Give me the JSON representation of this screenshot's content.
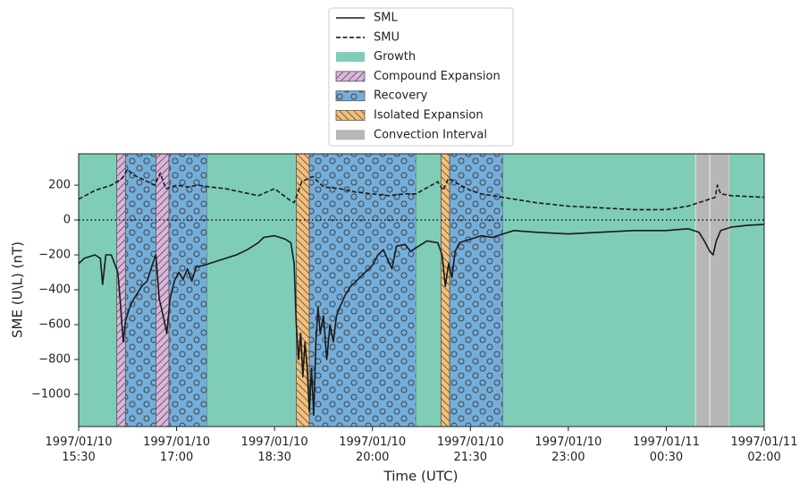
{
  "chart_data": {
    "type": "line",
    "xlabel": "Time (UTC)",
    "ylabel": "SME (U\\L) (nT)",
    "xlim": [
      "1997/01/10 15:30",
      "1997/01/11 02:00"
    ],
    "xticks": [
      "1997/01/10 15:30",
      "1997/01/10 17:00",
      "1997/01/10 18:30",
      "1997/01/10 20:00",
      "1997/01/10 21:30",
      "1997/01/10 23:00",
      "1997/01/11 00:30",
      "1997/01/11 02:00"
    ],
    "ylim": [
      -1185,
      380
    ],
    "yticks": [
      200,
      0,
      {
        "value": -200,
        "label": "−200"
      },
      {
        "value": -400,
        "label": "−400"
      },
      {
        "value": -600,
        "label": "−600"
      },
      {
        "value": -800,
        "label": "−800"
      },
      {
        "value": -1000,
        "label": "−1000"
      }
    ],
    "reference_line": 0,
    "series": [
      {
        "name": "SML",
        "color": "#1a1a1a",
        "dash": "solid",
        "x": [
          "1997/01/10 15:30",
          "1997/01/10 15:35",
          "1997/01/10 15:45",
          "1997/01/10 15:50",
          "1997/01/10 15:52",
          "1997/01/10 15:55",
          "1997/01/10 16:00",
          "1997/01/10 16:03",
          "1997/01/10 16:06",
          "1997/01/10 16:08",
          "1997/01/10 16:11",
          "1997/01/10 16:13",
          "1997/01/10 16:17",
          "1997/01/10 16:20",
          "1997/01/10 16:24",
          "1997/01/10 16:28",
          "1997/01/10 16:33",
          "1997/01/10 16:38",
          "1997/01/10 16:41",
          "1997/01/10 16:44",
          "1997/01/10 16:48",
          "1997/01/10 16:51",
          "1997/01/10 16:54",
          "1997/01/10 16:58",
          "1997/01/10 17:02",
          "1997/01/10 17:06",
          "1997/01/10 17:10",
          "1997/01/10 17:14",
          "1997/01/10 17:18",
          "1997/01/10 17:25",
          "1997/01/10 17:35",
          "1997/01/10 17:45",
          "1997/01/10 17:55",
          "1997/01/10 18:05",
          "1997/01/10 18:15",
          "1997/01/10 18:20",
          "1997/01/10 18:30",
          "1997/01/10 18:40",
          "1997/01/10 18:45",
          "1997/01/10 18:48",
          "1997/01/10 18:50",
          "1997/01/10 18:52",
          "1997/01/10 18:54",
          "1997/01/10 18:56",
          "1997/01/10 18:58",
          "1997/01/10 19:00",
          "1997/01/10 19:02",
          "1997/01/10 19:04",
          "1997/01/10 19:06",
          "1997/01/10 19:08",
          "1997/01/10 19:10",
          "1997/01/10 19:12",
          "1997/01/10 19:15",
          "1997/01/10 19:18",
          "1997/01/10 19:21",
          "1997/01/10 19:24",
          "1997/01/10 19:27",
          "1997/01/10 19:30",
          "1997/01/10 19:35",
          "1997/01/10 19:40",
          "1997/01/10 19:45",
          "1997/01/10 19:50",
          "1997/01/10 19:55",
          "1997/01/10 20:00",
          "1997/01/10 20:05",
          "1997/01/10 20:10",
          "1997/01/10 20:15",
          "1997/01/10 20:18",
          "1997/01/10 20:22",
          "1997/01/10 20:30",
          "1997/01/10 20:35",
          "1997/01/10 20:40",
          "1997/01/10 20:50",
          "1997/01/10 21:00",
          "1997/01/10 21:04",
          "1997/01/10 21:07",
          "1997/01/10 21:10",
          "1997/01/10 21:13",
          "1997/01/10 21:16",
          "1997/01/10 21:20",
          "1997/01/10 21:30",
          "1997/01/10 21:40",
          "1997/01/10 21:50",
          "1997/01/10 22:00",
          "1997/01/10 22:10",
          "1997/01/10 22:30",
          "1997/01/10 23:00",
          "1997/01/10 23:30",
          "1997/01/11 00:00",
          "1997/01/11 00:30",
          "1997/01/11 00:50",
          "1997/01/11 01:00",
          "1997/01/11 01:05",
          "1997/01/11 01:10",
          "1997/01/11 01:13",
          "1997/01/11 01:16",
          "1997/01/11 01:20",
          "1997/01/11 01:30",
          "1997/01/11 01:45",
          "1997/01/11 02:00"
        ],
        "values": [
          -250,
          -220,
          -200,
          -220,
          -370,
          -200,
          -200,
          -250,
          -300,
          -450,
          -700,
          -580,
          -500,
          -460,
          -420,
          -380,
          -350,
          -250,
          -200,
          -450,
          -560,
          -650,
          -450,
          -350,
          -300,
          -340,
          -280,
          -350,
          -270,
          -260,
          -240,
          -220,
          -200,
          -170,
          -130,
          -100,
          -90,
          -110,
          -130,
          -250,
          -600,
          -800,
          -650,
          -900,
          -700,
          -850,
          -1100,
          -850,
          -1120,
          -700,
          -500,
          -650,
          -550,
          -800,
          -600,
          -700,
          -550,
          -500,
          -430,
          -380,
          -350,
          -320,
          -290,
          -260,
          -200,
          -170,
          -240,
          -280,
          -150,
          -140,
          -180,
          -160,
          -120,
          -130,
          -200,
          -380,
          -250,
          -330,
          -180,
          -130,
          -110,
          -90,
          -100,
          -80,
          -60,
          -70,
          -80,
          -70,
          -60,
          -60,
          -50,
          -70,
          -120,
          -180,
          -200,
          -120,
          -60,
          -40,
          -30,
          -25
        ]
      },
      {
        "name": "SMU",
        "color": "#1a1a1a",
        "dash": "dashed",
        "x": [
          "1997/01/10 15:30",
          "1997/01/10 15:45",
          "1997/01/10 16:00",
          "1997/01/10 16:10",
          "1997/01/10 16:15",
          "1997/01/10 16:20",
          "1997/01/10 16:30",
          "1997/01/10 16:40",
          "1997/01/10 16:45",
          "1997/01/10 16:50",
          "1997/01/10 17:00",
          "1997/01/10 17:10",
          "1997/01/10 17:20",
          "1997/01/10 17:30",
          "1997/01/10 17:45",
          "1997/01/10 18:00",
          "1997/01/10 18:15",
          "1997/01/10 18:30",
          "1997/01/10 18:45",
          "1997/01/10 18:48",
          "1997/01/10 18:55",
          "1997/01/10 19:05",
          "1997/01/10 19:15",
          "1997/01/10 19:30",
          "1997/01/10 19:45",
          "1997/01/10 20:00",
          "1997/01/10 20:15",
          "1997/01/10 20:30",
          "1997/01/10 20:40",
          "1997/01/10 21:00",
          "1997/01/10 21:05",
          "1997/01/10 21:10",
          "1997/01/10 21:15",
          "1997/01/10 21:30",
          "1997/01/10 21:40",
          "1997/01/10 22:00",
          "1997/01/10 22:30",
          "1997/01/10 23:00",
          "1997/01/10 23:30",
          "1997/01/11 00:00",
          "1997/01/11 00:30",
          "1997/01/11 00:50",
          "1997/01/11 01:05",
          "1997/01/11 01:15",
          "1997/01/11 01:17",
          "1997/01/11 01:20",
          "1997/01/11 01:30",
          "1997/01/11 02:00"
        ],
        "values": [
          120,
          170,
          200,
          240,
          290,
          260,
          230,
          200,
          270,
          180,
          200,
          190,
          200,
          190,
          180,
          160,
          140,
          180,
          110,
          100,
          220,
          250,
          190,
          180,
          160,
          150,
          140,
          150,
          150,
          220,
          170,
          240,
          220,
          170,
          150,
          130,
          100,
          80,
          70,
          60,
          60,
          80,
          110,
          130,
          200,
          150,
          140,
          130
        ]
      }
    ],
    "interval_types": [
      {
        "name": "Growth",
        "color": "#80cdb7",
        "hatch": "none"
      },
      {
        "name": "Compound Expansion",
        "color": "#dbb4db",
        "hatch": "forward"
      },
      {
        "name": "Recovery",
        "color": "#74aedb",
        "hatch": "circles"
      },
      {
        "name": "Isolated Expansion",
        "color": "#f4c078",
        "hatch": "back"
      },
      {
        "name": "Convection Interval",
        "color": "#b7b7b7",
        "hatch": "none"
      }
    ],
    "intervals": [
      {
        "type": 0,
        "start": "1997/01/10 15:30",
        "end": "1997/01/10 16:05"
      },
      {
        "type": 1,
        "start": "1997/01/10 16:05",
        "end": "1997/01/10 16:13"
      },
      {
        "type": 2,
        "start": "1997/01/10 16:13",
        "end": "1997/01/10 16:41"
      },
      {
        "type": 1,
        "start": "1997/01/10 16:41",
        "end": "1997/01/10 16:53"
      },
      {
        "type": 2,
        "start": "1997/01/10 16:53",
        "end": "1997/01/10 17:28"
      },
      {
        "type": 0,
        "start": "1997/01/10 17:28",
        "end": "1997/01/10 18:50"
      },
      {
        "type": 3,
        "start": "1997/01/10 18:50",
        "end": "1997/01/10 19:02"
      },
      {
        "type": 2,
        "start": "1997/01/10 19:02",
        "end": "1997/01/10 20:40"
      },
      {
        "type": 0,
        "start": "1997/01/10 20:40",
        "end": "1997/01/10 21:03"
      },
      {
        "type": 3,
        "start": "1997/01/10 21:03",
        "end": "1997/01/10 21:11"
      },
      {
        "type": 2,
        "start": "1997/01/10 21:11",
        "end": "1997/01/10 22:00"
      },
      {
        "type": 0,
        "start": "1997/01/10 22:00",
        "end": "1997/01/11 00:57"
      },
      {
        "type": 4,
        "start": "1997/01/11 00:57",
        "end": "1997/01/11 01:10"
      },
      {
        "type": 4,
        "start": "1997/01/11 01:10",
        "end": "1997/01/11 01:28"
      },
      {
        "type": 0,
        "start": "1997/01/11 01:28",
        "end": "1997/01/11 02:00"
      }
    ]
  }
}
